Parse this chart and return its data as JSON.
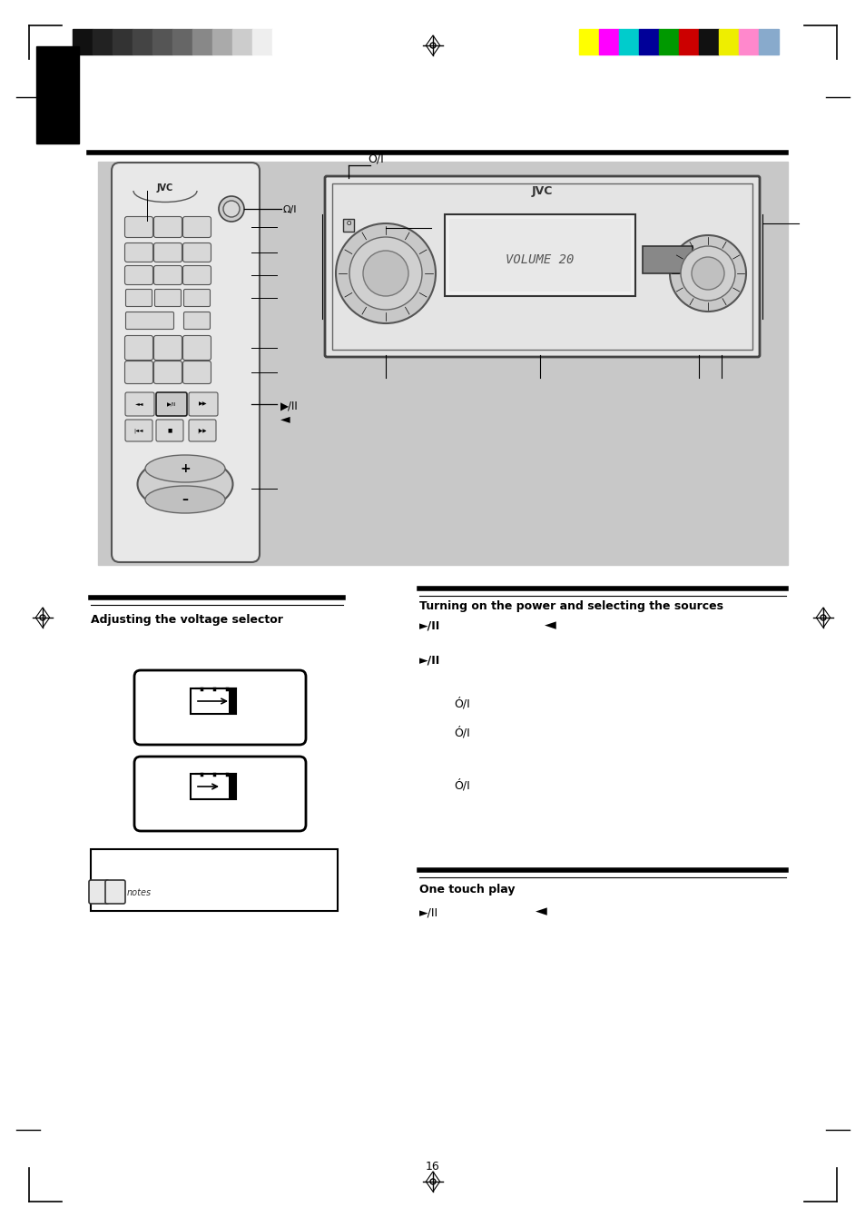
{
  "bg_color": "#ffffff",
  "page_width": 9.54,
  "page_height": 13.51,
  "gray_bar_colors": [
    "#111111",
    "#222222",
    "#333333",
    "#444444",
    "#555555",
    "#666666",
    "#888888",
    "#aaaaaa",
    "#cccccc",
    "#eeeeee",
    "#ffffff"
  ],
  "color_bar_colors": [
    "#ffff00",
    "#ff00ff",
    "#00cccc",
    "#000099",
    "#009900",
    "#cc0000",
    "#111111",
    "#eeee00",
    "#ff88cc",
    "#88aacc"
  ],
  "diag_bg": "#c8c8c8",
  "remote_bg": "#e8e8e8",
  "unit_bg": "#e4e4e4",
  "screen_bg": "#d0d0d0",
  "section1_title": "Adjusting the voltage selector",
  "section2_title": "Turning on the power and selecting the sources",
  "section3_title": "One touch play"
}
